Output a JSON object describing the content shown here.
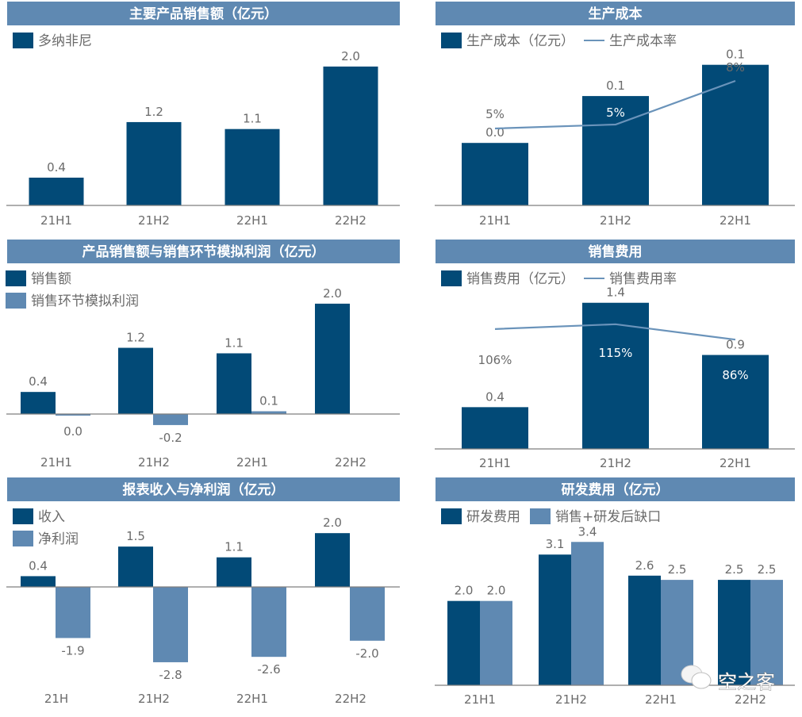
{
  "colors": {
    "title_bg": "#5f89b2",
    "dark_bar": "#024a77",
    "light_bar": "#5f89b2",
    "line": "#6a93ba",
    "axis": "#7f7f7f",
    "text": "#6b6b6b"
  },
  "watermark": {
    "icon": "wechat-icon",
    "text": "空之客"
  },
  "chart_data": [
    {
      "id": "main-product-sales",
      "type": "bar",
      "title": "主要产品销售额（亿元）",
      "categories": [
        "21H1",
        "21H2",
        "22H1",
        "22H2"
      ],
      "series": [
        {
          "name": "多纳非尼",
          "values": [
            0.4,
            1.2,
            1.1,
            2.0
          ],
          "labels": [
            "0.4",
            "1.2",
            "1.1",
            "2.0"
          ],
          "color": "dark"
        }
      ],
      "ylim": [
        0,
        2.25
      ],
      "legend": "top-left",
      "grid": false
    },
    {
      "id": "production-cost",
      "type": "bar+line",
      "title": "生产成本",
      "categories": [
        "21H1",
        "21H2",
        "22H1"
      ],
      "series": [
        {
          "name": "生产成本（亿元）",
          "kind": "bar",
          "values": [
            0.04,
            0.07,
            0.09
          ],
          "labels": [
            "0.0",
            "0.1",
            "0.1"
          ],
          "color": "dark"
        },
        {
          "name": "生产成本率",
          "kind": "line",
          "values": [
            5,
            5,
            8
          ],
          "labels": [
            "5%",
            "5%",
            "8%"
          ],
          "unit": "%"
        }
      ],
      "ylim": [
        0,
        0.1
      ],
      "line_ylim": [
        0,
        11
      ],
      "legend": "top-left",
      "grid": false
    },
    {
      "id": "sales-and-simulated-profit",
      "type": "bar",
      "title": "产品销售额与销售环节模拟利润（亿元）",
      "categories": [
        "21H1",
        "21H2",
        "22H1",
        "22H2"
      ],
      "series": [
        {
          "name": "销售额",
          "values": [
            0.4,
            1.2,
            1.1,
            2.0
          ],
          "labels": [
            "0.4",
            "1.2",
            "1.1",
            "2.0"
          ],
          "color": "dark"
        },
        {
          "name": "销售环节模拟利润",
          "values": [
            -0.02,
            -0.2,
            0.05,
            null
          ],
          "labels": [
            "0.0",
            "-0.2",
            "0.1",
            ""
          ],
          "color": "light"
        }
      ],
      "ylim": [
        -0.4,
        2.3
      ],
      "legend": "top-left",
      "grid": false
    },
    {
      "id": "sales-expense",
      "type": "bar+line",
      "title": "销售费用",
      "categories": [
        "21H1",
        "21H2",
        "22H1"
      ],
      "series": [
        {
          "name": "销售费用（亿元）",
          "kind": "bar",
          "values": [
            0.4,
            1.4,
            0.9
          ],
          "labels": [
            "0.4",
            "1.4",
            "0.9"
          ],
          "color": "dark"
        },
        {
          "name": "销售费用率",
          "kind": "line",
          "values": [
            106,
            115,
            86
          ],
          "labels": [
            "106%",
            "115%",
            "86%"
          ],
          "unit": "%"
        }
      ],
      "ylim": [
        0,
        1.55
      ],
      "line_ylim": [
        -120,
        185
      ],
      "legend": "top-left",
      "grid": false
    },
    {
      "id": "reported-revenue-net-profit",
      "type": "bar",
      "title": "报表收入与净利润（亿元）",
      "categories": [
        "21H",
        "21H2",
        "22H1",
        "22H2"
      ],
      "series": [
        {
          "name": "收入",
          "values": [
            0.4,
            1.5,
            1.1,
            2.0
          ],
          "labels": [
            "0.4",
            "1.5",
            "1.1",
            "2.0"
          ],
          "color": "dark"
        },
        {
          "name": "净利润",
          "values": [
            -1.9,
            -2.8,
            -2.6,
            -2.0
          ],
          "labels": [
            "-1.9",
            "-2.8",
            "-2.6",
            "-2.0"
          ],
          "color": "light"
        }
      ],
      "ylim": [
        -3.3,
        2.3
      ],
      "legend": "top-left",
      "grid": false
    },
    {
      "id": "rd-expense",
      "type": "bar",
      "title": "研发费用（亿元）",
      "categories": [
        "21H1",
        "21H2",
        "22H1",
        "22H2"
      ],
      "series": [
        {
          "name": "研发费用",
          "values": [
            2.0,
            3.1,
            2.6,
            2.5
          ],
          "labels": [
            "2.0",
            "3.1",
            "2.6",
            "2.5"
          ],
          "color": "dark"
        },
        {
          "name": "销售+研发后缺口",
          "values": [
            2.0,
            3.4,
            2.5,
            2.5
          ],
          "labels": [
            "2.0",
            "3.4",
            "2.5",
            "2.5"
          ],
          "color": "light"
        }
      ],
      "ylim": [
        0,
        3.8
      ],
      "legend": "top-left",
      "grid": false
    }
  ]
}
